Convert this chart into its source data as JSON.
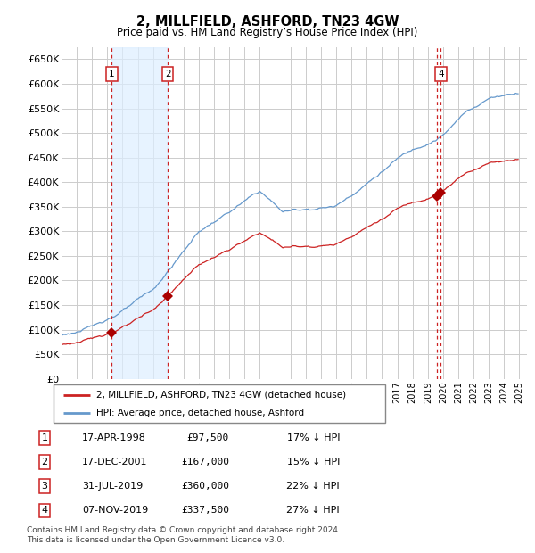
{
  "title": "2, MILLFIELD, ASHFORD, TN23 4GW",
  "subtitle": "Price paid vs. HM Land Registry’s House Price Index (HPI)",
  "ylim": [
    0,
    675000
  ],
  "yticks": [
    0,
    50000,
    100000,
    150000,
    200000,
    250000,
    300000,
    350000,
    400000,
    450000,
    500000,
    550000,
    600000,
    650000
  ],
  "ytick_labels": [
    "£0",
    "£50K",
    "£100K",
    "£150K",
    "£200K",
    "£250K",
    "£300K",
    "£350K",
    "£400K",
    "£450K",
    "£500K",
    "£550K",
    "£600K",
    "£650K"
  ],
  "xlim_start": 1995.0,
  "xlim_end": 2025.5,
  "background_color": "#ffffff",
  "grid_color": "#cccccc",
  "hpi_line_color": "#6699cc",
  "price_line_color": "#cc2222",
  "marker_color": "#aa0000",
  "transactions": [
    {
      "num": 1,
      "x": 1998.29,
      "price": 97500,
      "show_box": true
    },
    {
      "num": 2,
      "x": 2001.96,
      "price": 167000,
      "show_box": true
    },
    {
      "num": 3,
      "x": 2019.58,
      "price": 360000,
      "show_box": false
    },
    {
      "num": 4,
      "x": 2019.85,
      "price": 337500,
      "show_box": true
    }
  ],
  "shaded_region": [
    1998.29,
    2001.96
  ],
  "legend_property_label": "2, MILLFIELD, ASHFORD, TN23 4GW (detached house)",
  "legend_hpi_label": "HPI: Average price, detached house, Ashford",
  "footnote": "Contains HM Land Registry data © Crown copyright and database right 2024.\nThis data is licensed under the Open Government Licence v3.0.",
  "table_rows": [
    [
      "1",
      "17-APR-1998",
      "£97,500",
      "17% ↓ HPI"
    ],
    [
      "2",
      "17-DEC-2001",
      "£167,000",
      "15% ↓ HPI"
    ],
    [
      "3",
      "31-JUL-2019",
      "£360,000",
      "22% ↓ HPI"
    ],
    [
      "4",
      "07-NOV-2019",
      "£337,500",
      "27% ↓ HPI"
    ]
  ]
}
